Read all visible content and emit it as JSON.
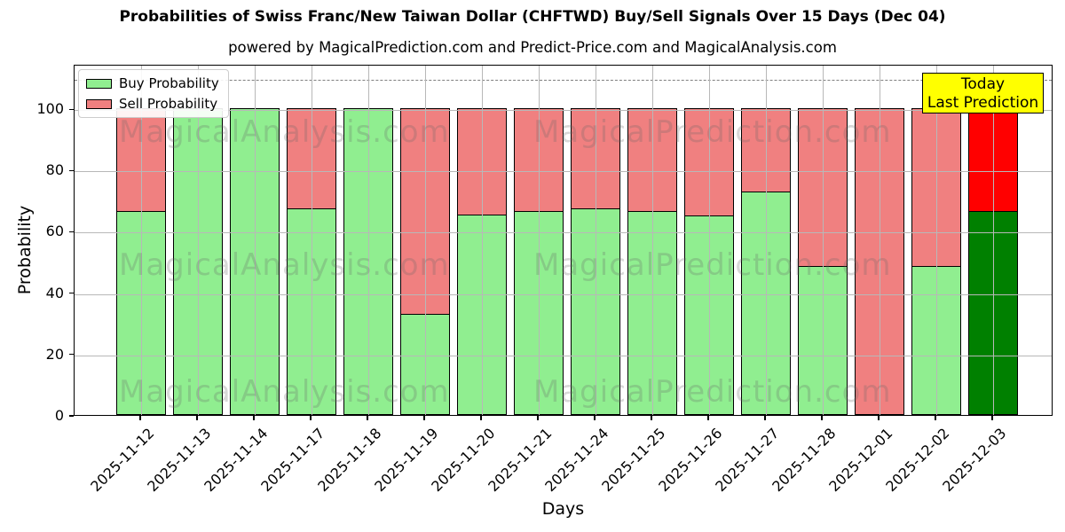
{
  "title": "Probabilities of Swiss Franc/New Taiwan Dollar (CHFTWD) Buy/Sell Signals Over 15 Days (Dec 04)",
  "subtitle": "powered by MagicalPrediction.com and Predict-Price.com and MagicalAnalysis.com",
  "legend": {
    "items": [
      {
        "label": "Buy Probability",
        "color": "#90EE90"
      },
      {
        "label": "Sell Probability",
        "color": "#F08080"
      }
    ]
  },
  "annotation": {
    "line1": "Today",
    "line2": "Last Prediction",
    "bg_color": "#FFFF00"
  },
  "watermarks": {
    "left_text": "MagicalAnalysis.com",
    "right_text": "MagicalPrediction.com"
  },
  "chart_data": {
    "type": "bar",
    "stacked": true,
    "title": "Probabilities of Swiss Franc/New Taiwan Dollar (CHFTWD) Buy/Sell Signals Over 15 Days (Dec 04)",
    "xlabel": "Days",
    "ylabel": "Probability",
    "categories": [
      "2025-11-12",
      "2025-11-13",
      "2025-11-14",
      "2025-11-17",
      "2025-11-18",
      "2025-11-19",
      "2025-11-20",
      "2025-11-21",
      "2025-11-24",
      "2025-11-25",
      "2025-11-26",
      "2025-11-27",
      "2025-11-28",
      "2025-12-01",
      "2025-12-02",
      "2025-12-03"
    ],
    "series": [
      {
        "name": "Buy Probability",
        "color": "#90EE90",
        "last_bar_color": "#008000",
        "values": [
          66.7,
          100,
          100,
          67.5,
          100,
          33,
          65.5,
          66.7,
          67.5,
          66.7,
          65,
          73,
          48.5,
          0,
          48.5,
          66.7
        ]
      },
      {
        "name": "Sell Probability",
        "color": "#F08080",
        "last_bar_color": "#FF0000",
        "values": [
          33.3,
          0,
          0,
          32.5,
          0,
          67,
          34.5,
          33.3,
          32.5,
          33.3,
          35,
          27,
          51.5,
          100,
          51.5,
          33.3
        ]
      }
    ],
    "yticks": [
      0,
      20,
      40,
      60,
      80,
      100
    ],
    "ylim": [
      0,
      114.5
    ],
    "dashed_line_y": 110,
    "grid": true,
    "legend_position": "upper left",
    "bar_edge_color": "#000000",
    "grid_color": "#b8b8b8"
  }
}
